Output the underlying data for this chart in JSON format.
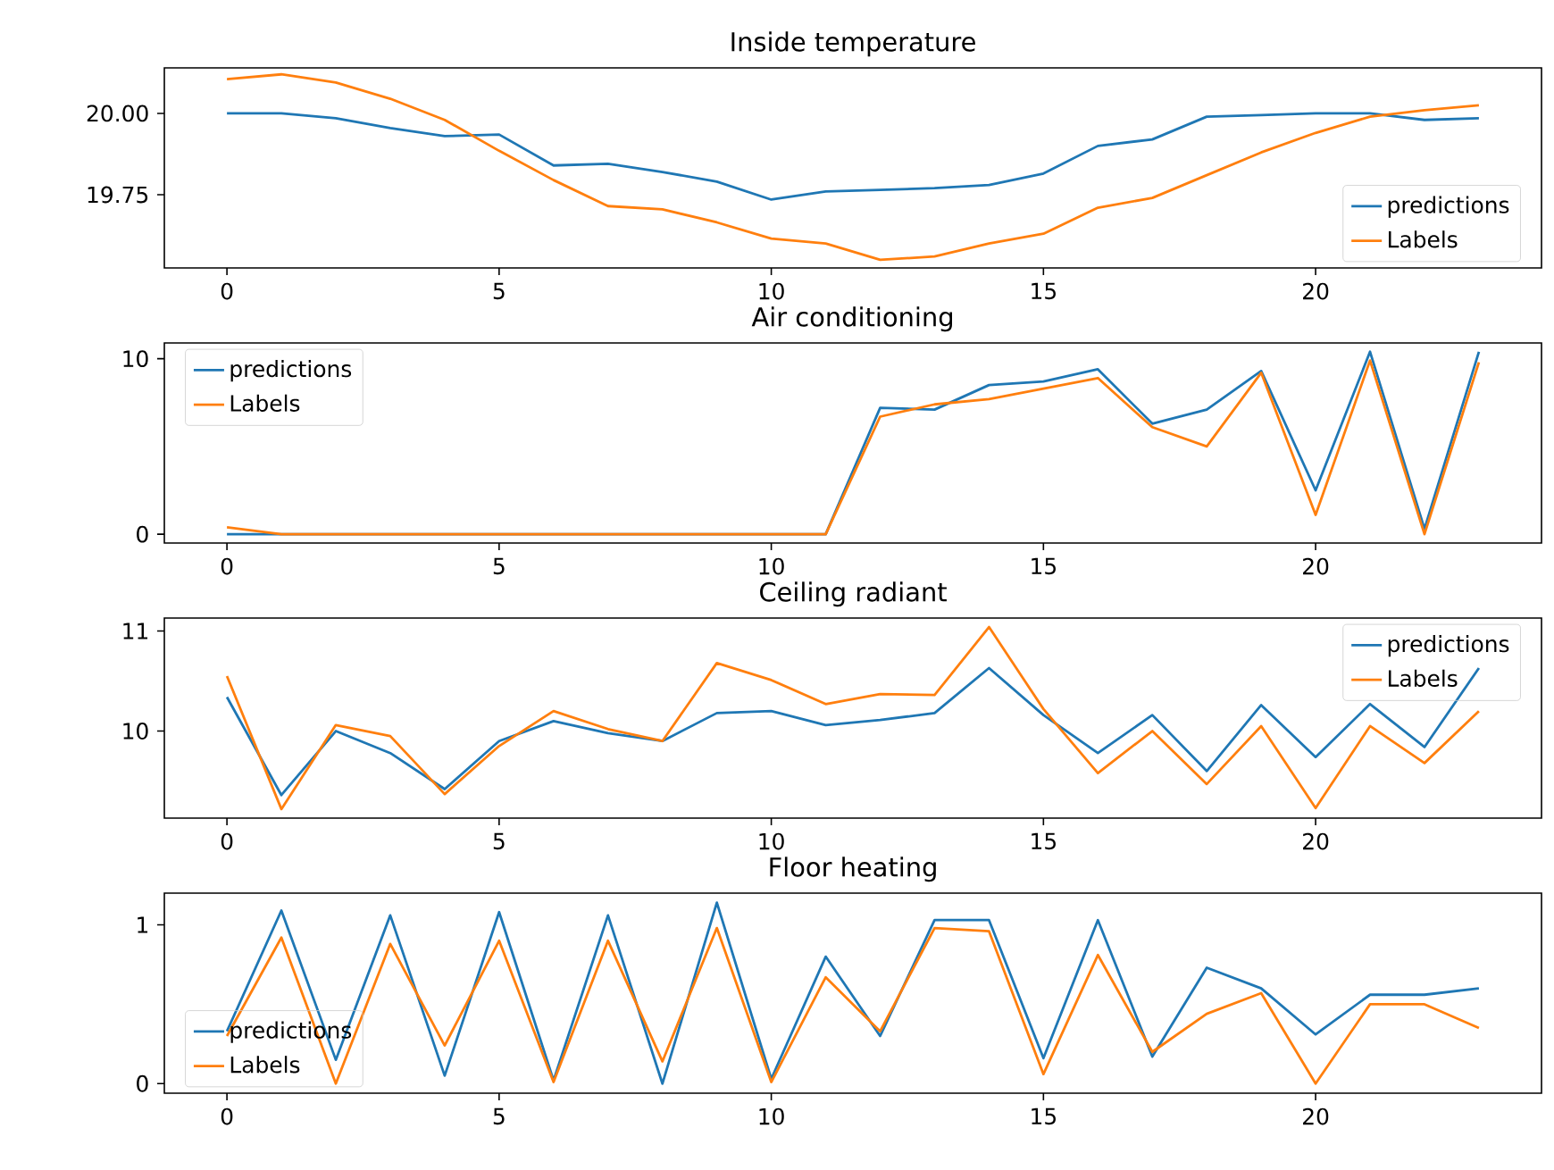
{
  "chart_data": [
    {
      "type": "line",
      "title": "Inside temperature",
      "x": [
        0,
        1,
        2,
        3,
        4,
        5,
        6,
        7,
        8,
        9,
        10,
        11,
        12,
        13,
        14,
        15,
        16,
        17,
        18,
        19,
        20,
        21,
        22,
        23
      ],
      "xlim": [
        -1.15,
        24.15
      ],
      "xticks": [
        0,
        5,
        10,
        15,
        20
      ],
      "ylim": [
        19.525,
        20.14
      ],
      "yticks": [
        {
          "value": 19.75,
          "label": "19.75"
        },
        {
          "value": 20,
          "label": "20.00"
        }
      ],
      "legend": "bottom right",
      "series": [
        {
          "name": "predictions",
          "color": "#1f77b4",
          "values": [
            20.0,
            20.0,
            19.985,
            19.955,
            19.93,
            19.935,
            19.84,
            19.845,
            19.82,
            19.79,
            19.735,
            19.76,
            19.765,
            19.77,
            19.78,
            19.815,
            19.9,
            19.92,
            19.99,
            19.995,
            20.0,
            20.0,
            19.98,
            19.985
          ]
        },
        {
          "name": "Labels",
          "color": "#ff7f0e",
          "values": [
            20.105,
            20.12,
            20.095,
            20.045,
            19.98,
            19.885,
            19.795,
            19.715,
            19.705,
            19.665,
            19.615,
            19.6,
            19.55,
            19.56,
            19.6,
            19.63,
            19.71,
            19.74,
            19.81,
            19.88,
            19.94,
            19.99,
            20.01,
            20.025
          ]
        }
      ]
    },
    {
      "type": "line",
      "title": "Air conditioning",
      "x": [
        0,
        1,
        2,
        3,
        4,
        5,
        6,
        7,
        8,
        9,
        10,
        11,
        12,
        13,
        14,
        15,
        16,
        17,
        18,
        19,
        20,
        21,
        22,
        23
      ],
      "xlim": [
        -1.15,
        24.15
      ],
      "xticks": [
        0,
        5,
        10,
        15,
        20
      ],
      "ylim": [
        -0.5,
        10.9
      ],
      "yticks": [
        0,
        10
      ],
      "legend": "top left",
      "series": [
        {
          "name": "predictions",
          "color": "#1f77b4",
          "values": [
            0,
            0,
            0,
            0,
            0,
            0,
            0,
            0,
            0,
            0,
            0,
            0,
            7.2,
            7.1,
            8.5,
            8.7,
            9.4,
            6.3,
            7.1,
            9.3,
            2.5,
            10.4,
            0.3,
            10.4
          ]
        },
        {
          "name": "Labels",
          "color": "#ff7f0e",
          "values": [
            0.4,
            0,
            0,
            0,
            0,
            0,
            0,
            0,
            0,
            0,
            0,
            0,
            6.7,
            7.4,
            7.7,
            8.3,
            8.9,
            6.1,
            5.0,
            9.2,
            1.1,
            9.9,
            0,
            9.8
          ]
        }
      ]
    },
    {
      "type": "line",
      "title": "Ceiling radiant",
      "x": [
        0,
        1,
        2,
        3,
        4,
        5,
        6,
        7,
        8,
        9,
        10,
        11,
        12,
        13,
        14,
        15,
        16,
        17,
        18,
        19,
        20,
        21,
        22,
        23
      ],
      "xlim": [
        -1.15,
        24.15
      ],
      "xticks": [
        0,
        5,
        10,
        15,
        20
      ],
      "ylim": [
        9.13,
        11.13
      ],
      "yticks": [
        10,
        11
      ],
      "legend": "top right",
      "series": [
        {
          "name": "predictions",
          "color": "#1f77b4",
          "values": [
            10.34,
            9.36,
            10.0,
            9.78,
            9.42,
            9.9,
            10.1,
            9.98,
            9.9,
            10.18,
            10.2,
            10.06,
            10.11,
            10.18,
            10.63,
            10.16,
            9.78,
            10.16,
            9.6,
            10.26,
            9.74,
            10.27,
            9.84,
            10.63
          ]
        },
        {
          "name": "Labels",
          "color": "#ff7f0e",
          "values": [
            10.55,
            9.22,
            10.06,
            9.95,
            9.37,
            9.85,
            10.2,
            10.02,
            9.9,
            10.68,
            10.51,
            10.27,
            10.37,
            10.36,
            11.04,
            10.22,
            9.58,
            10.0,
            9.47,
            10.05,
            9.23,
            10.05,
            9.68,
            10.2
          ]
        }
      ]
    },
    {
      "type": "line",
      "title": "Floor heating",
      "x": [
        0,
        1,
        2,
        3,
        4,
        5,
        6,
        7,
        8,
        9,
        10,
        11,
        12,
        13,
        14,
        15,
        16,
        17,
        18,
        19,
        20,
        21,
        22,
        23
      ],
      "xlim": [
        -1.15,
        24.15
      ],
      "xticks": [
        0,
        5,
        10,
        15,
        20
      ],
      "ylim": [
        -0.06,
        1.2
      ],
      "yticks": [
        0,
        1
      ],
      "legend": "bottom left",
      "series": [
        {
          "name": "predictions",
          "color": "#1f77b4",
          "values": [
            0.33,
            1.09,
            0.15,
            1.06,
            0.05,
            1.08,
            0.02,
            1.06,
            0.0,
            1.14,
            0.03,
            0.8,
            0.3,
            1.03,
            1.03,
            0.16,
            1.03,
            0.17,
            0.73,
            0.6,
            0.31,
            0.56,
            0.56,
            0.6
          ]
        },
        {
          "name": "Labels",
          "color": "#ff7f0e",
          "values": [
            0.3,
            0.92,
            0.0,
            0.88,
            0.24,
            0.9,
            0.01,
            0.9,
            0.14,
            0.98,
            0.01,
            0.67,
            0.33,
            0.98,
            0.96,
            0.06,
            0.81,
            0.2,
            0.44,
            0.57,
            0.0,
            0.5,
            0.5,
            0.35
          ]
        }
      ]
    }
  ]
}
